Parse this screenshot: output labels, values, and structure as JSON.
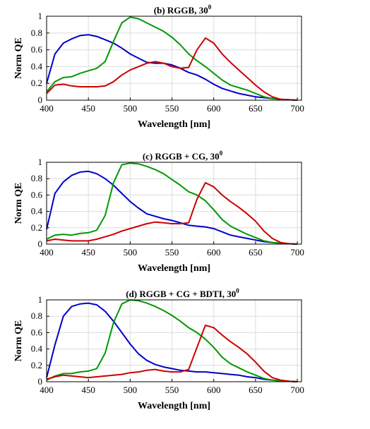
{
  "chart_data": [
    {
      "type": "line",
      "title": "(b) RGGB, 30",
      "title_superscript": "0",
      "xlabel": "Wavelength [nm]",
      "ylabel": "Norm QE",
      "xlim": [
        400,
        705
      ],
      "ylim": [
        0,
        1
      ],
      "xticks": [
        400,
        450,
        500,
        550,
        600,
        650,
        700
      ],
      "yticks": [
        0,
        0.2,
        0.4,
        0.6,
        0.8,
        1
      ],
      "grid": true,
      "series": [
        {
          "color": "#0000cc",
          "x": [
            400,
            410,
            420,
            430,
            440,
            450,
            460,
            470,
            480,
            490,
            500,
            510,
            520,
            530,
            540,
            550,
            560,
            570,
            580,
            590,
            600,
            610,
            620,
            630,
            640,
            650,
            660,
            670,
            680,
            690,
            700
          ],
          "y": [
            0.2,
            0.55,
            0.68,
            0.73,
            0.77,
            0.78,
            0.76,
            0.72,
            0.68,
            0.62,
            0.55,
            0.5,
            0.45,
            0.44,
            0.44,
            0.42,
            0.38,
            0.33,
            0.3,
            0.25,
            0.19,
            0.14,
            0.11,
            0.08,
            0.06,
            0.04,
            0.03,
            0.02,
            0.01,
            0.005,
            0
          ]
        },
        {
          "color": "#009900",
          "x": [
            400,
            410,
            420,
            430,
            440,
            450,
            460,
            470,
            480,
            490,
            500,
            510,
            520,
            530,
            540,
            550,
            560,
            570,
            580,
            590,
            600,
            610,
            620,
            630,
            640,
            650,
            660,
            670,
            680,
            690,
            700
          ],
          "y": [
            0.1,
            0.22,
            0.27,
            0.28,
            0.32,
            0.35,
            0.38,
            0.46,
            0.7,
            0.92,
            0.99,
            0.97,
            0.92,
            0.87,
            0.82,
            0.75,
            0.66,
            0.55,
            0.47,
            0.4,
            0.32,
            0.24,
            0.18,
            0.15,
            0.12,
            0.08,
            0.04,
            0.02,
            0.01,
            0.005,
            0
          ]
        },
        {
          "color": "#cc0000",
          "x": [
            400,
            410,
            420,
            430,
            440,
            450,
            460,
            470,
            480,
            490,
            500,
            510,
            520,
            530,
            540,
            550,
            560,
            570,
            580,
            590,
            600,
            610,
            620,
            630,
            640,
            650,
            660,
            670,
            680,
            690,
            700
          ],
          "y": [
            0.08,
            0.18,
            0.19,
            0.17,
            0.16,
            0.16,
            0.16,
            0.17,
            0.22,
            0.3,
            0.36,
            0.4,
            0.44,
            0.46,
            0.44,
            0.4,
            0.38,
            0.39,
            0.6,
            0.74,
            0.68,
            0.55,
            0.45,
            0.36,
            0.27,
            0.18,
            0.1,
            0.04,
            0.01,
            0.005,
            0
          ]
        }
      ]
    },
    {
      "type": "line",
      "title": "(c) RGGB + CG, 30",
      "title_superscript": "0",
      "xlabel": "Wavelength [nm]",
      "ylabel": "Norm QE",
      "xlim": [
        400,
        705
      ],
      "ylim": [
        0,
        1
      ],
      "xticks": [
        400,
        450,
        500,
        550,
        600,
        650,
        700
      ],
      "yticks": [
        0,
        0.2,
        0.4,
        0.6,
        0.8,
        1
      ],
      "grid": true,
      "series": [
        {
          "color": "#0000cc",
          "x": [
            400,
            410,
            420,
            430,
            440,
            450,
            460,
            470,
            480,
            490,
            500,
            510,
            520,
            530,
            540,
            550,
            560,
            570,
            580,
            590,
            600,
            610,
            620,
            630,
            640,
            650,
            660,
            670,
            680,
            690,
            700
          ],
          "y": [
            0.18,
            0.62,
            0.76,
            0.84,
            0.88,
            0.89,
            0.86,
            0.8,
            0.72,
            0.62,
            0.52,
            0.44,
            0.37,
            0.34,
            0.31,
            0.29,
            0.26,
            0.23,
            0.22,
            0.21,
            0.19,
            0.15,
            0.11,
            0.09,
            0.07,
            0.05,
            0.03,
            0.02,
            0.01,
            0.005,
            0
          ]
        },
        {
          "color": "#009900",
          "x": [
            400,
            410,
            420,
            430,
            440,
            450,
            460,
            470,
            480,
            490,
            500,
            510,
            520,
            530,
            540,
            550,
            560,
            570,
            580,
            590,
            600,
            610,
            620,
            630,
            640,
            650,
            660,
            670,
            680,
            690,
            700
          ],
          "y": [
            0.06,
            0.11,
            0.12,
            0.11,
            0.13,
            0.14,
            0.17,
            0.35,
            0.75,
            0.97,
            0.99,
            0.98,
            0.95,
            0.91,
            0.86,
            0.79,
            0.72,
            0.64,
            0.6,
            0.53,
            0.42,
            0.3,
            0.22,
            0.17,
            0.12,
            0.08,
            0.04,
            0.02,
            0.01,
            0.005,
            0
          ]
        },
        {
          "color": "#cc0000",
          "x": [
            400,
            410,
            420,
            430,
            440,
            450,
            460,
            470,
            480,
            490,
            500,
            510,
            520,
            530,
            540,
            550,
            560,
            570,
            580,
            590,
            600,
            610,
            620,
            630,
            640,
            650,
            660,
            670,
            680,
            690,
            700
          ],
          "y": [
            0.04,
            0.06,
            0.05,
            0.04,
            0.04,
            0.04,
            0.06,
            0.09,
            0.12,
            0.16,
            0.19,
            0.22,
            0.25,
            0.27,
            0.26,
            0.25,
            0.25,
            0.26,
            0.55,
            0.75,
            0.7,
            0.6,
            0.52,
            0.45,
            0.37,
            0.28,
            0.16,
            0.07,
            0.02,
            0.005,
            0
          ]
        }
      ]
    },
    {
      "type": "line",
      "title": "(d) RGGB + CG + BDTI, 30",
      "title_superscript": "0",
      "xlabel": "Wavelength [nm]",
      "ylabel": "Norm QE",
      "xlim": [
        400,
        705
      ],
      "ylim": [
        0,
        1
      ],
      "xticks": [
        400,
        450,
        500,
        550,
        600,
        650,
        700
      ],
      "yticks": [
        0,
        0.2,
        0.4,
        0.6,
        0.8,
        1
      ],
      "grid": true,
      "series": [
        {
          "color": "#0000cc",
          "x": [
            400,
            410,
            420,
            430,
            440,
            450,
            460,
            470,
            480,
            490,
            500,
            510,
            520,
            530,
            540,
            550,
            560,
            570,
            580,
            590,
            600,
            610,
            620,
            630,
            640,
            650,
            660,
            670,
            680,
            690,
            700
          ],
          "y": [
            0.05,
            0.45,
            0.8,
            0.92,
            0.95,
            0.96,
            0.94,
            0.86,
            0.74,
            0.6,
            0.46,
            0.34,
            0.26,
            0.21,
            0.18,
            0.16,
            0.14,
            0.13,
            0.12,
            0.12,
            0.11,
            0.1,
            0.09,
            0.08,
            0.06,
            0.05,
            0.03,
            0.02,
            0.01,
            0.005,
            0
          ]
        },
        {
          "color": "#009900",
          "x": [
            400,
            410,
            420,
            430,
            440,
            450,
            460,
            470,
            480,
            490,
            500,
            510,
            520,
            530,
            540,
            550,
            560,
            570,
            580,
            590,
            600,
            610,
            620,
            630,
            640,
            650,
            660,
            670,
            680,
            690,
            700
          ],
          "y": [
            0.02,
            0.07,
            0.1,
            0.1,
            0.12,
            0.13,
            0.16,
            0.35,
            0.72,
            0.95,
            1.0,
            0.99,
            0.96,
            0.92,
            0.87,
            0.81,
            0.74,
            0.66,
            0.6,
            0.52,
            0.42,
            0.3,
            0.22,
            0.17,
            0.12,
            0.08,
            0.04,
            0.02,
            0.01,
            0.005,
            0
          ]
        },
        {
          "color": "#cc0000",
          "x": [
            400,
            410,
            420,
            430,
            440,
            450,
            460,
            470,
            480,
            490,
            500,
            510,
            520,
            530,
            540,
            550,
            560,
            570,
            580,
            590,
            600,
            610,
            620,
            630,
            640,
            650,
            660,
            670,
            680,
            690,
            700
          ],
          "y": [
            0.03,
            0.06,
            0.08,
            0.07,
            0.06,
            0.05,
            0.06,
            0.07,
            0.08,
            0.09,
            0.11,
            0.12,
            0.14,
            0.15,
            0.13,
            0.12,
            0.12,
            0.15,
            0.42,
            0.69,
            0.66,
            0.57,
            0.49,
            0.42,
            0.34,
            0.24,
            0.13,
            0.05,
            0.02,
            0.005,
            0
          ]
        }
      ]
    }
  ]
}
